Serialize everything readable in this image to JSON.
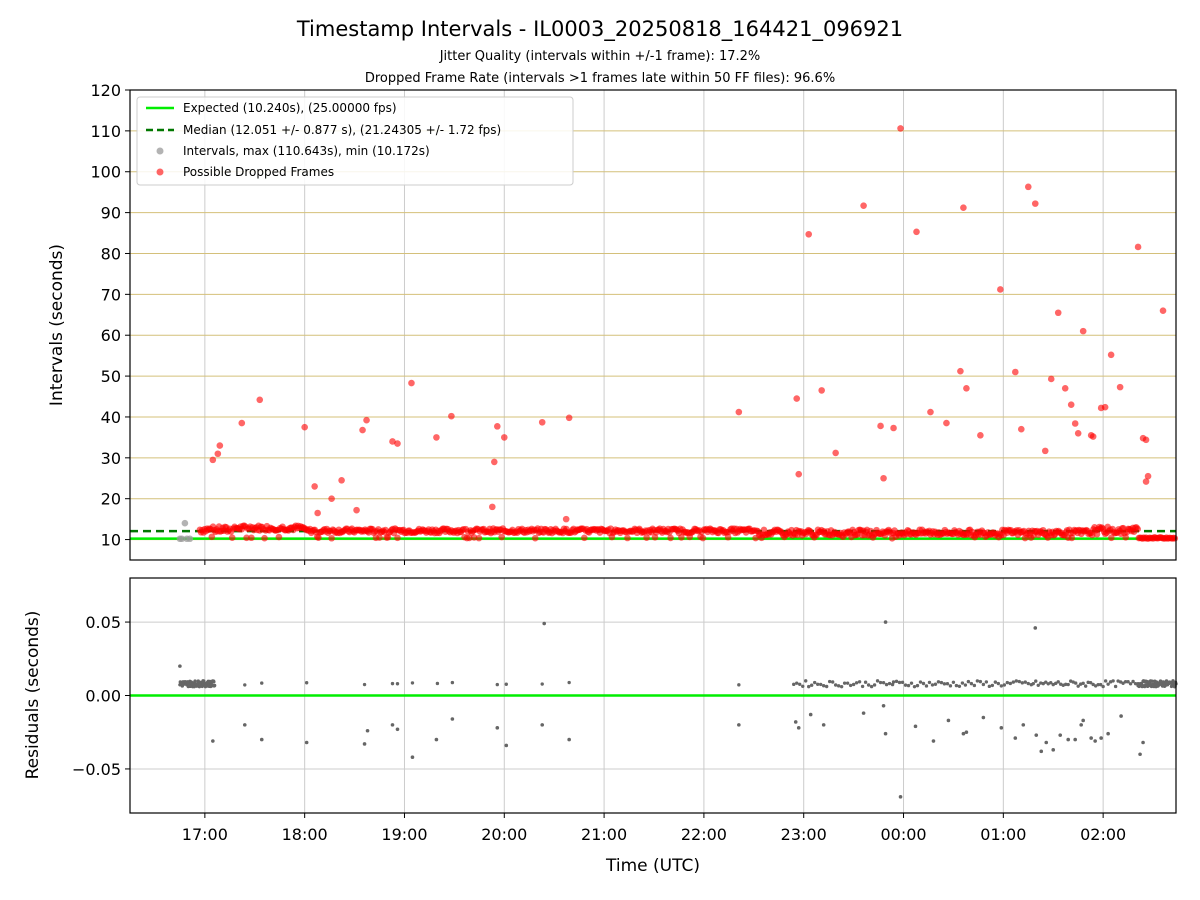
{
  "title": "Timestamp Intervals - IL0003_20250818_164421_096921",
  "subtitle_1": "Jitter Quality (intervals within +/-1 frame): 17.2%",
  "subtitle_2": "Dropped Frame Rate (intervals >1 frames late within 50 FF files): 96.6%",
  "colors": {
    "expected": "#00ee00",
    "median": "#007700",
    "intervals": "#999999",
    "dropped": "#ff0000",
    "residuals": "#666666",
    "hgrid": "#d4c07a",
    "vgrid": "#cccccc"
  },
  "chart_data": [
    {
      "type": "scatter",
      "ylabel": "Intervals (seconds)",
      "xlim_hours": [
        16.25,
        26.73
      ],
      "ylim": [
        5,
        120
      ],
      "yticks": [
        "10",
        "20",
        "30",
        "40",
        "50",
        "60",
        "70",
        "80",
        "90",
        "100",
        "110",
        "120"
      ],
      "ytick_values": [
        10,
        20,
        30,
        40,
        50,
        60,
        70,
        80,
        90,
        100,
        110,
        120
      ],
      "grid": true,
      "legend_position": "top-left",
      "lines": {
        "expected": {
          "label": "Expected (10.240s), (25.00000 fps)",
          "y": 10.24
        },
        "median": {
          "label": "Median (12.051 +/- 0.877 s), (21.24305 +/- 1.72 fps)",
          "y": 12.051
        }
      },
      "series": [
        {
          "name": "Intervals, max (110.643s), min (10.172s)",
          "points": [
            [
              16.75,
              10.2
            ],
            [
              16.77,
              10.2
            ],
            [
              16.8,
              14.0
            ],
            [
              16.82,
              10.2
            ],
            [
              16.85,
              10.2
            ]
          ]
        },
        {
          "name": "Possible Dropped Frames",
          "points": [
            [
              17.08,
              29.5
            ],
            [
              17.13,
              31.0
            ],
            [
              17.15,
              33.0
            ],
            [
              17.37,
              38.5
            ],
            [
              17.55,
              44.2
            ],
            [
              18.0,
              37.5
            ],
            [
              18.1,
              23.0
            ],
            [
              18.13,
              16.5
            ],
            [
              18.27,
              20.0
            ],
            [
              18.37,
              24.5
            ],
            [
              18.52,
              17.2
            ],
            [
              18.58,
              36.8
            ],
            [
              18.62,
              39.2
            ],
            [
              18.88,
              34.0
            ],
            [
              18.93,
              33.5
            ],
            [
              19.07,
              48.3
            ],
            [
              19.32,
              35.0
            ],
            [
              19.47,
              40.2
            ],
            [
              19.88,
              18.0
            ],
            [
              19.9,
              29.0
            ],
            [
              19.93,
              37.7
            ],
            [
              20.0,
              35.0
            ],
            [
              20.38,
              38.7
            ],
            [
              20.62,
              15.0
            ],
            [
              20.65,
              39.8
            ],
            [
              22.35,
              41.2
            ],
            [
              22.93,
              44.5
            ],
            [
              22.95,
              26.0
            ],
            [
              23.05,
              84.7
            ],
            [
              23.18,
              46.5
            ],
            [
              23.32,
              31.2
            ],
            [
              23.6,
              91.7
            ],
            [
              23.77,
              37.8
            ],
            [
              23.8,
              25.0
            ],
            [
              23.9,
              37.3
            ],
            [
              23.97,
              110.6
            ],
            [
              24.13,
              85.3
            ],
            [
              24.27,
              41.2
            ],
            [
              24.43,
              38.5
            ],
            [
              24.57,
              51.2
            ],
            [
              24.6,
              91.2
            ],
            [
              24.63,
              47.0
            ],
            [
              24.77,
              35.5
            ],
            [
              24.97,
              71.2
            ],
            [
              25.12,
              51.0
            ],
            [
              25.18,
              37.0
            ],
            [
              25.25,
              96.3
            ],
            [
              25.32,
              92.2
            ],
            [
              25.42,
              31.7
            ],
            [
              25.48,
              49.3
            ],
            [
              25.55,
              65.5
            ],
            [
              25.62,
              47.0
            ],
            [
              25.68,
              43.0
            ],
            [
              25.72,
              38.4
            ],
            [
              25.75,
              36.0
            ],
            [
              25.8,
              61.0
            ],
            [
              25.88,
              35.5
            ],
            [
              25.9,
              35.2
            ],
            [
              25.98,
              42.2
            ],
            [
              26.02,
              42.4
            ],
            [
              26.08,
              55.2
            ],
            [
              26.17,
              47.3
            ],
            [
              26.35,
              81.6
            ],
            [
              26.4,
              34.8
            ],
            [
              26.43,
              24.2
            ],
            [
              26.45,
              25.5
            ],
            [
              26.43,
              34.4
            ],
            [
              26.6,
              66.0
            ]
          ],
          "band": "dense points along 10.2–13.5 s from 16.95 h to 26.73 h"
        }
      ]
    },
    {
      "type": "scatter",
      "xlabel": "Time (UTC)",
      "ylabel": "Residuals (seconds)",
      "ylim": [
        -0.08,
        0.08
      ],
      "yticks": [
        "0.05",
        "0.00",
        "−0.05"
      ],
      "ytick_values": [
        0.05,
        0.0,
        -0.05
      ],
      "xticks": [
        "17:00",
        "18:00",
        "19:00",
        "20:00",
        "21:00",
        "22:00",
        "23:00",
        "00:00",
        "01:00",
        "02:00"
      ],
      "xtick_hours": [
        17,
        18,
        19,
        20,
        21,
        22,
        23,
        24,
        25,
        26
      ],
      "grid": true,
      "zero_line": 0.0,
      "points": [
        [
          16.75,
          0.02
        ],
        [
          17.08,
          -0.031
        ],
        [
          17.4,
          -0.02
        ],
        [
          17.57,
          -0.03
        ],
        [
          18.02,
          -0.032
        ],
        [
          18.6,
          -0.033
        ],
        [
          18.63,
          -0.024
        ],
        [
          18.88,
          -0.02
        ],
        [
          18.93,
          -0.023
        ],
        [
          19.08,
          -0.042
        ],
        [
          19.32,
          -0.03
        ],
        [
          19.48,
          -0.016
        ],
        [
          19.93,
          -0.022
        ],
        [
          20.02,
          -0.034
        ],
        [
          20.38,
          -0.02
        ],
        [
          20.4,
          0.049
        ],
        [
          20.65,
          -0.03
        ],
        [
          22.35,
          -0.02
        ],
        [
          22.92,
          -0.018
        ],
        [
          22.95,
          -0.022
        ],
        [
          23.07,
          -0.013
        ],
        [
          23.2,
          -0.02
        ],
        [
          23.6,
          -0.012
        ],
        [
          23.8,
          -0.007
        ],
        [
          23.82,
          -0.026
        ],
        [
          23.82,
          0.05
        ],
        [
          23.97,
          -0.069
        ],
        [
          24.12,
          -0.021
        ],
        [
          24.3,
          -0.031
        ],
        [
          24.45,
          -0.017
        ],
        [
          24.6,
          -0.026
        ],
        [
          24.63,
          -0.025
        ],
        [
          24.8,
          -0.015
        ],
        [
          24.98,
          -0.022
        ],
        [
          25.12,
          -0.029
        ],
        [
          25.2,
          -0.02
        ],
        [
          25.32,
          0.046
        ],
        [
          25.33,
          -0.027
        ],
        [
          25.38,
          -0.038
        ],
        [
          25.43,
          -0.032
        ],
        [
          25.5,
          -0.037
        ],
        [
          25.57,
          -0.027
        ],
        [
          25.65,
          -0.03
        ],
        [
          25.72,
          -0.03
        ],
        [
          25.78,
          -0.02
        ],
        [
          25.8,
          -0.017
        ],
        [
          25.88,
          -0.029
        ],
        [
          25.92,
          -0.031
        ],
        [
          25.98,
          -0.029
        ],
        [
          26.05,
          -0.026
        ],
        [
          26.18,
          -0.014
        ],
        [
          26.37,
          -0.04
        ],
        [
          26.4,
          -0.032
        ]
      ]
    }
  ]
}
